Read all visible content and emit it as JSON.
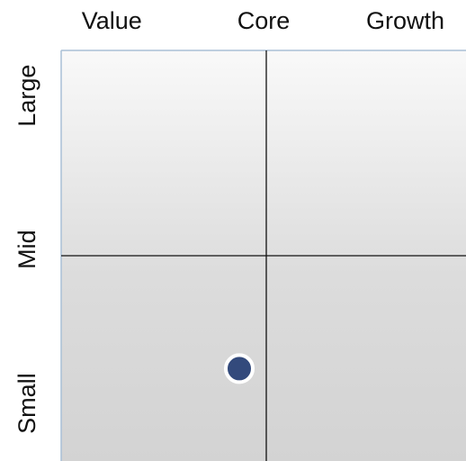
{
  "chart_data": {
    "type": "scatter",
    "xlim": [
      -100,
      100
    ],
    "xticks": [
      {
        "value": -75,
        "label": "Value"
      },
      {
        "value": 0,
        "label": "Core"
      },
      {
        "value": 70,
        "label": "Growth"
      }
    ],
    "ylim": [
      -100,
      100
    ],
    "yticks": [
      {
        "value": 78,
        "label": "Large"
      },
      {
        "value": 3,
        "label": "Mid"
      },
      {
        "value": -72,
        "label": "Small"
      }
    ],
    "series": [
      {
        "color": "#334a7c",
        "x": [
          -12
        ],
        "values": [
          -55
        ]
      }
    ]
  }
}
